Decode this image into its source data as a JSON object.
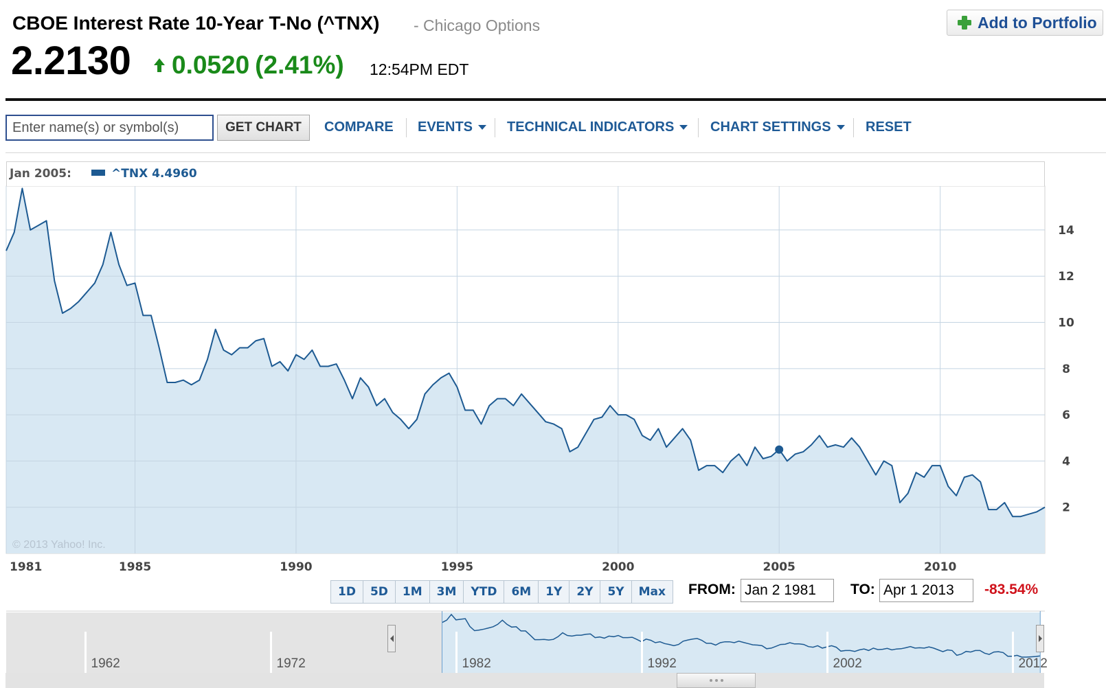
{
  "quote": {
    "title": "CBOE Interest Rate 10-Year T-No (^TNX)",
    "exchange": "- Chicago Options",
    "price": "2.2130",
    "change": "0.0520",
    "change_pct": "(2.41%)",
    "time": "12:54PM EDT",
    "change_color": "#1a8a1a"
  },
  "portfolio_button": {
    "label": "Add to Portfolio",
    "icon": "plus-icon",
    "icon_color": "#3aa03a"
  },
  "toolbar": {
    "search_placeholder": "Enter name(s) or symbol(s)",
    "get_chart": "GET CHART",
    "compare": "COMPARE",
    "events": "EVENTS",
    "technical_indicators": "TECHNICAL INDICATORS",
    "chart_settings": "CHART SETTINGS",
    "reset": "RESET"
  },
  "legend": {
    "date": "Jan 2005:",
    "series": "^TNX 4.4960",
    "series_color": "#1d5a92"
  },
  "copyright": "© 2013 Yahoo! Inc.",
  "range_buttons": [
    "1D",
    "5D",
    "1M",
    "3M",
    "YTD",
    "6M",
    "1Y",
    "2Y",
    "5Y",
    "Max"
  ],
  "date_range": {
    "from_label": "FROM:",
    "from_value": "Jan 2 1981",
    "to_label": "TO:",
    "to_value": "Apr 1 2013",
    "pct_change": "-83.54%",
    "pct_color": "#d0121b"
  },
  "chart_data": {
    "type": "area",
    "x_tick_labels": [
      "1981",
      "1985",
      "1990",
      "1995",
      "2000",
      "2005",
      "2010"
    ],
    "y_tick_labels": [
      "14",
      "12",
      "10",
      "8",
      "6",
      "4",
      "2"
    ],
    "xlim": [
      1981.0,
      2013.25
    ],
    "ylim": [
      0,
      15.9
    ],
    "grid": true,
    "series": [
      {
        "name": "^TNX",
        "color": "#1d5a92",
        "fill": "#d8e8f3",
        "x": [
          1981.0,
          1981.25,
          1981.5,
          1981.75,
          1982.0,
          1982.25,
          1982.5,
          1982.75,
          1983.0,
          1983.25,
          1983.5,
          1983.75,
          1984.0,
          1984.25,
          1984.5,
          1984.75,
          1985.0,
          1985.25,
          1985.5,
          1985.75,
          1986.0,
          1986.25,
          1986.5,
          1986.75,
          1987.0,
          1987.25,
          1987.5,
          1987.75,
          1988.0,
          1988.25,
          1988.5,
          1988.75,
          1989.0,
          1989.25,
          1989.5,
          1989.75,
          1990.0,
          1990.25,
          1990.5,
          1990.75,
          1991.0,
          1991.25,
          1991.5,
          1991.75,
          1992.0,
          1992.25,
          1992.5,
          1992.75,
          1993.0,
          1993.25,
          1993.5,
          1993.75,
          1994.0,
          1994.25,
          1994.5,
          1994.75,
          1995.0,
          1995.25,
          1995.5,
          1995.75,
          1996.0,
          1996.25,
          1996.5,
          1996.75,
          1997.0,
          1997.25,
          1997.5,
          1997.75,
          1998.0,
          1998.25,
          1998.5,
          1998.75,
          1999.0,
          1999.25,
          1999.5,
          1999.75,
          2000.0,
          2000.25,
          2000.5,
          2000.75,
          2001.0,
          2001.25,
          2001.5,
          2001.75,
          2002.0,
          2002.25,
          2002.5,
          2002.75,
          2003.0,
          2003.25,
          2003.5,
          2003.75,
          2004.0,
          2004.25,
          2004.5,
          2004.75,
          2005.0,
          2005.25,
          2005.5,
          2005.75,
          2006.0,
          2006.25,
          2006.5,
          2006.75,
          2007.0,
          2007.25,
          2007.5,
          2007.75,
          2008.0,
          2008.25,
          2008.5,
          2008.75,
          2009.0,
          2009.25,
          2009.5,
          2009.75,
          2010.0,
          2010.25,
          2010.5,
          2010.75,
          2011.0,
          2011.25,
          2011.5,
          2011.75,
          2012.0,
          2012.25,
          2012.5,
          2012.75,
          2013.0,
          2013.25
        ],
        "values": [
          13.1,
          13.9,
          15.8,
          14.0,
          14.2,
          14.4,
          11.8,
          10.4,
          10.6,
          10.9,
          11.3,
          11.7,
          12.5,
          13.9,
          12.5,
          11.6,
          11.7,
          10.3,
          10.3,
          8.9,
          7.4,
          7.4,
          7.5,
          7.3,
          7.5,
          8.4,
          9.7,
          8.8,
          8.6,
          8.9,
          8.9,
          9.2,
          9.3,
          8.1,
          8.3,
          7.9,
          8.6,
          8.4,
          8.8,
          8.1,
          8.1,
          8.2,
          7.5,
          6.7,
          7.6,
          7.2,
          6.4,
          6.7,
          6.1,
          5.8,
          5.4,
          5.8,
          6.9,
          7.3,
          7.6,
          7.8,
          7.2,
          6.2,
          6.2,
          5.6,
          6.4,
          6.7,
          6.7,
          6.4,
          6.9,
          6.5,
          6.1,
          5.7,
          5.6,
          5.4,
          4.4,
          4.6,
          5.2,
          5.8,
          5.9,
          6.4,
          6.0,
          6.0,
          5.8,
          5.1,
          4.9,
          5.4,
          4.6,
          5.0,
          5.4,
          4.9,
          3.6,
          3.8,
          3.8,
          3.5,
          4.0,
          4.3,
          3.8,
          4.6,
          4.1,
          4.2,
          4.5,
          4.0,
          4.3,
          4.4,
          4.7,
          5.1,
          4.6,
          4.7,
          4.6,
          5.0,
          4.6,
          4.0,
          3.4,
          4.0,
          3.8,
          2.2,
          2.6,
          3.5,
          3.3,
          3.8,
          3.8,
          2.9,
          2.5,
          3.3,
          3.4,
          3.1,
          1.9,
          1.9,
          2.2,
          1.6,
          1.6,
          1.7,
          1.8,
          2.0
        ]
      }
    ],
    "highlight": {
      "x": 2005.0,
      "y": 4.496
    }
  },
  "navigator": {
    "labels": [
      "1962",
      "1972",
      "1982",
      "1992",
      "2002",
      "2012"
    ],
    "inactive_fill": "#e4e4e4",
    "active_fill": "#d8e8f3"
  }
}
